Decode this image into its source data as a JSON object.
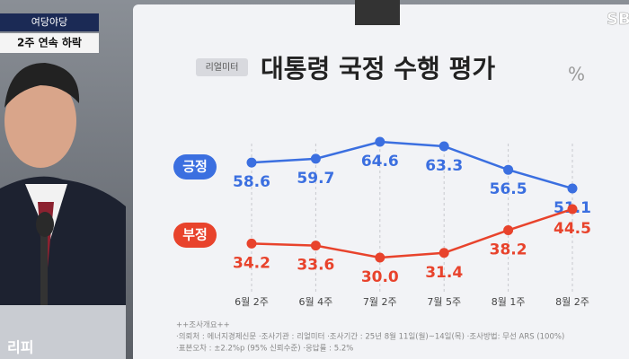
{
  "overlay": {
    "badge": "여당야당",
    "caption": "2주 연속 하락",
    "logo": "SBS",
    "corner": "리피"
  },
  "chart_data": {
    "type": "line",
    "title": "대통령 국정 수행 평가",
    "unit": "%",
    "source": "리얼미터",
    "categories": [
      "6월 2주",
      "6월 4주",
      "7월 2주",
      "7월 5주",
      "8월 1주",
      "8월 2주"
    ],
    "series": [
      {
        "name": "긍정",
        "color": "#3b6fe0",
        "values": [
          58.6,
          59.7,
          64.6,
          63.3,
          56.5,
          51.1
        ],
        "value_labels": [
          "58.6",
          "59.7",
          "64.6",
          "63.3",
          "56.5",
          "51.1"
        ]
      },
      {
        "name": "부정",
        "color": "#e8432c",
        "values": [
          34.2,
          33.6,
          30.0,
          31.4,
          38.2,
          44.5
        ],
        "value_labels": [
          "34.2",
          "33.6",
          "30.0",
          "31.4",
          "38.2",
          "44.5"
        ]
      }
    ],
    "notes": [
      "++조사개요++",
      "·의뢰처 : 에너지경제신문 ·조사기관 : 리얼미터 ·조사기간 : 25년 8월 11일(월)~14일(목) ·조사방법: 무선 ARS (100%)",
      "·표본오차 : ±2.2%p (95% 신뢰수준) ·응답률 : 5.2%"
    ]
  }
}
